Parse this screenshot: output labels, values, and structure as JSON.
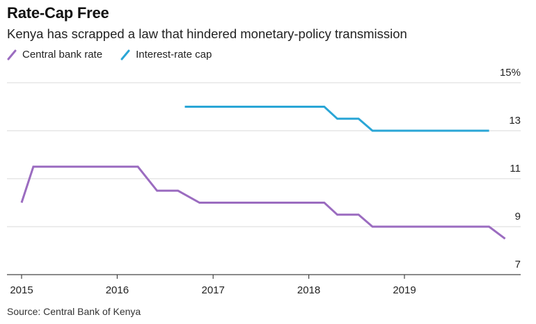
{
  "title": "Rate-Cap Free",
  "subtitle": "Kenya has scrapped a law that hindered monetary-policy transmission",
  "source": "Source: Central Bank of Kenya",
  "colors": {
    "central_bank_rate": "#9b6cc0",
    "interest_rate_cap": "#2aa6d6",
    "grid": "#d9d9d9",
    "axis": "#444444"
  },
  "chart_data": {
    "type": "line",
    "title": "Rate-Cap Free",
    "xlabel": "",
    "ylabel": "",
    "xlim": [
      "2015-01-01",
      "2019-12-31"
    ],
    "ylim": [
      7,
      15
    ],
    "yticks": [
      {
        "value": 15,
        "label": "15%"
      },
      {
        "value": 13,
        "label": "13"
      },
      {
        "value": 11,
        "label": "11"
      },
      {
        "value": 9,
        "label": "9"
      },
      {
        "value": 7,
        "label": "7"
      }
    ],
    "xticks": [
      {
        "value": "2015-01-01",
        "label": "2015"
      },
      {
        "value": "2016-01-01",
        "label": "2016"
      },
      {
        "value": "2017-01-01",
        "label": "2017"
      },
      {
        "value": "2018-01-01",
        "label": "2018"
      },
      {
        "value": "2019-01-01",
        "label": "2019"
      }
    ],
    "grid": true,
    "legend_position": "top-left",
    "series": [
      {
        "name": "Central bank rate",
        "color": "#9b6cc0",
        "points": [
          [
            "2015-01-01",
            10.0
          ],
          [
            "2015-02-15",
            11.5
          ],
          [
            "2016-03-20",
            11.5
          ],
          [
            "2016-06-01",
            10.5
          ],
          [
            "2016-08-20",
            10.5
          ],
          [
            "2016-11-10",
            10.0
          ],
          [
            "2018-03-01",
            10.0
          ],
          [
            "2018-04-20",
            9.5
          ],
          [
            "2018-07-10",
            9.5
          ],
          [
            "2018-09-01",
            9.0
          ],
          [
            "2019-11-20",
            9.0
          ],
          [
            "2020-01-20",
            8.5
          ]
        ]
      },
      {
        "name": "Interest-rate cap",
        "color": "#2aa6d6",
        "points": [
          [
            "2016-09-15",
            14.0
          ],
          [
            "2018-03-01",
            14.0
          ],
          [
            "2018-04-20",
            13.5
          ],
          [
            "2018-07-10",
            13.5
          ],
          [
            "2018-09-01",
            13.0
          ],
          [
            "2019-11-20",
            13.0
          ]
        ]
      }
    ]
  }
}
